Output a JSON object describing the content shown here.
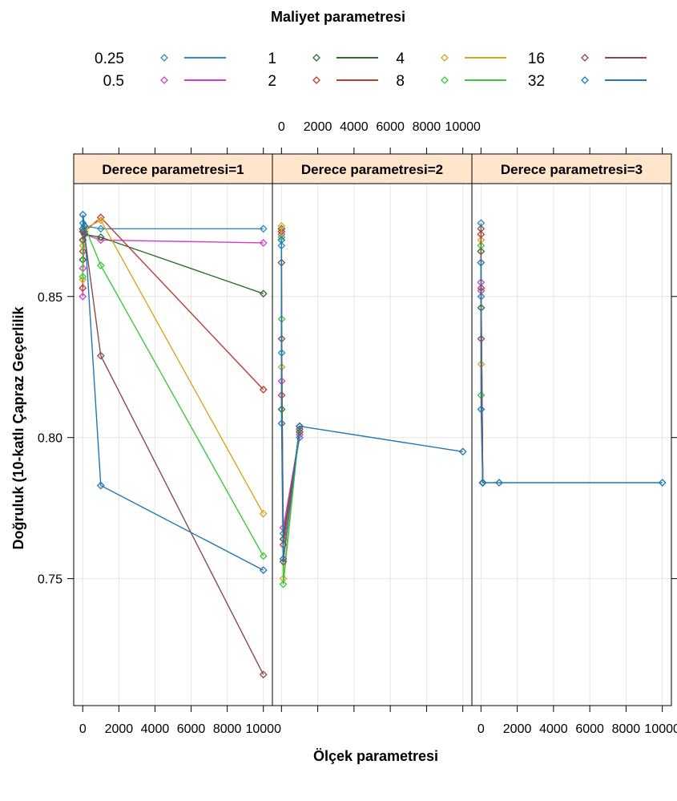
{
  "chart_data": {
    "type": "line",
    "title": "",
    "legend_title": "Maliyet parametresi",
    "legend_position": "top",
    "xlabel": "Ölçek parametresi",
    "ylabel": "Doğruluk (10-katlı Çapraz Geçerlilik",
    "xlim": [
      -500,
      10500
    ],
    "ylim": [
      0.705,
      0.89
    ],
    "x_ticks": [
      0,
      2000,
      4000,
      6000,
      8000,
      10000
    ],
    "y_ticks": [
      0.75,
      0.8,
      0.85
    ],
    "y_tick_labels": [
      "0.75",
      "0.80",
      "0.85"
    ],
    "grid": true,
    "colors": {
      "0.25": "#2E8BC0",
      "0.5": "#D63CC9",
      "1": "#2E6B2E",
      "2": "#C0392B",
      "4": "#D9A520",
      "8": "#3CC93C",
      "16": "#8B4A4A",
      "32": "#1F77B4"
    },
    "legend": [
      {
        "label": "0.25",
        "color": "#2E8BC0"
      },
      {
        "label": "0.5",
        "color": "#D63CC9"
      },
      {
        "label": "1",
        "color": "#2E6B2E"
      },
      {
        "label": "2",
        "color": "#C0392B"
      },
      {
        "label": "4",
        "color": "#D9A520"
      },
      {
        "label": "8",
        "color": "#3CC93C"
      },
      {
        "label": "16",
        "color": "#8B4A4A"
      },
      {
        "label": "32",
        "color": "#1F77B4"
      }
    ],
    "panels": [
      {
        "strip": "Derece parametresi=1",
        "series": [
          {
            "name": "0.25",
            "x": [
              0,
              10,
              100,
              1000,
              10000
            ],
            "y": [
              0.873,
              0.876,
              0.875,
              0.874,
              0.874
            ]
          },
          {
            "name": "0.5",
            "x": [
              0,
              10,
              100,
              1000,
              10000
            ],
            "y": [
              0.85,
              0.86,
              0.872,
              0.87,
              0.869
            ]
          },
          {
            "name": "1",
            "x": [
              0,
              10,
              100,
              1000,
              10000
            ],
            "y": [
              0.863,
              0.87,
              0.872,
              0.871,
              0.851
            ]
          },
          {
            "name": "2",
            "x": [
              0,
              10,
              100,
              1000,
              10000
            ],
            "y": [
              0.853,
              0.866,
              0.873,
              0.878,
              0.817
            ]
          },
          {
            "name": "4",
            "x": [
              0,
              10,
              100,
              1000,
              10000
            ],
            "y": [
              0.856,
              0.868,
              0.874,
              0.877,
              0.773
            ]
          },
          {
            "name": "8",
            "x": [
              0,
              10,
              100,
              1000,
              10000
            ],
            "y": [
              0.857,
              0.87,
              0.875,
              0.861,
              0.758
            ]
          },
          {
            "name": "16",
            "x": [
              0,
              10,
              100,
              1000,
              10000
            ],
            "y": [
              0.87,
              0.873,
              0.872,
              0.829,
              0.716
            ]
          },
          {
            "name": "32",
            "x": [
              0,
              10,
              100,
              1000,
              10000
            ],
            "y": [
              0.874,
              0.879,
              0.875,
              0.783,
              0.753
            ]
          }
        ]
      },
      {
        "strip": "Derece parametresi=2",
        "series": [
          {
            "name": "0.25",
            "x": [
              0,
              10,
              100,
              1000
            ],
            "y": [
              0.868,
              0.83,
              0.766,
              0.8
            ]
          },
          {
            "name": "0.5",
            "x": [
              0,
              10,
              100,
              1000
            ],
            "y": [
              0.872,
              0.82,
              0.768,
              0.801
            ]
          },
          {
            "name": "1",
            "x": [
              0,
              10,
              100,
              1000
            ],
            "y": [
              0.874,
              0.81,
              0.764,
              0.802
            ]
          },
          {
            "name": "2",
            "x": [
              0,
              10,
              100,
              1000
            ],
            "y": [
              0.873,
              0.815,
              0.762,
              0.803
            ]
          },
          {
            "name": "4",
            "x": [
              0,
              10,
              100,
              1000
            ],
            "y": [
              0.875,
              0.825,
              0.75,
              0.804
            ]
          },
          {
            "name": "8",
            "x": [
              0,
              10,
              100,
              1000
            ],
            "y": [
              0.871,
              0.842,
              0.748,
              0.804
            ]
          },
          {
            "name": "16",
            "x": [
              0,
              10,
              100,
              1000
            ],
            "y": [
              0.862,
              0.835,
              0.756,
              0.804
            ]
          },
          {
            "name": "32",
            "x": [
              0,
              10,
              100,
              1000,
              10000
            ],
            "y": [
              0.87,
              0.805,
              0.757,
              0.804,
              0.795
            ]
          }
        ]
      },
      {
        "strip": "Derece parametresi=3",
        "series": [
          {
            "name": "0.25",
            "x": [
              0,
              10,
              100
            ],
            "y": [
              0.876,
              0.85,
              0.784
            ]
          },
          {
            "name": "0.5",
            "x": [
              0,
              10,
              100
            ],
            "y": [
              0.855,
              0.852,
              0.784
            ]
          },
          {
            "name": "1",
            "x": [
              0,
              10,
              100
            ],
            "y": [
              0.866,
              0.846,
              0.784
            ]
          },
          {
            "name": "2",
            "x": [
              0,
              10,
              100
            ],
            "y": [
              0.872,
              0.853,
              0.784
            ]
          },
          {
            "name": "4",
            "x": [
              0,
              10,
              100
            ],
            "y": [
              0.87,
              0.826,
              0.784
            ]
          },
          {
            "name": "8",
            "x": [
              0,
              10,
              100
            ],
            "y": [
              0.868,
              0.815,
              0.784
            ]
          },
          {
            "name": "16",
            "x": [
              0,
              10,
              100
            ],
            "y": [
              0.874,
              0.835,
              0.784
            ]
          },
          {
            "name": "32",
            "x": [
              0,
              10,
              100,
              1000,
              10000
            ],
            "y": [
              0.862,
              0.81,
              0.784,
              0.784,
              0.784
            ]
          }
        ]
      }
    ]
  }
}
